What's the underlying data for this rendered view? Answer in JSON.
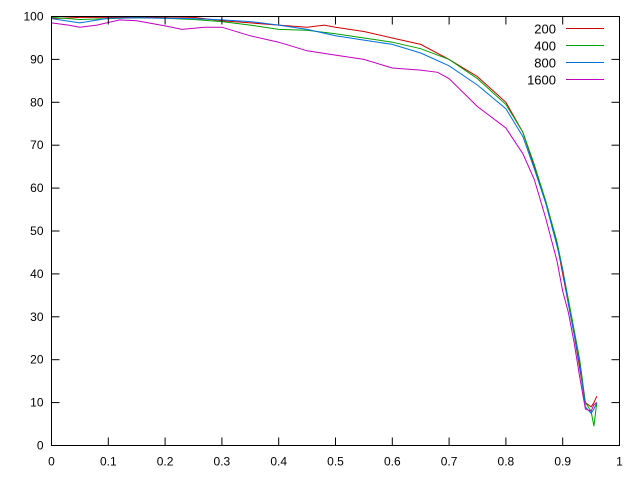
{
  "chart_data": {
    "type": "line",
    "title": "",
    "xlabel": "",
    "ylabel": "",
    "xlim": [
      0,
      1
    ],
    "ylim": [
      0,
      100
    ],
    "xticks": [
      "0",
      "0.1",
      "0.2",
      "0.3",
      "0.4",
      "0.5",
      "0.6",
      "0.7",
      "0.8",
      "0.9",
      "1"
    ],
    "yticks": [
      "0",
      "10",
      "20",
      "30",
      "40",
      "50",
      "60",
      "70",
      "80",
      "90",
      "100"
    ],
    "grid": false,
    "legend_position": "top-right",
    "series": [
      {
        "name": "200",
        "color": "#d00000",
        "x": [
          0,
          0.05,
          0.1,
          0.15,
          0.2,
          0.25,
          0.3,
          0.35,
          0.4,
          0.45,
          0.48,
          0.5,
          0.55,
          0.6,
          0.65,
          0.7,
          0.75,
          0.8,
          0.83,
          0.85,
          0.87,
          0.89,
          0.9,
          0.91,
          0.92,
          0.93,
          0.94,
          0.95,
          0.955,
          0.96
        ],
        "y": [
          99.5,
          99.8,
          99.8,
          99.8,
          99.9,
          99.8,
          99,
          98.5,
          98,
          97.5,
          98,
          97.5,
          96.5,
          95,
          93.5,
          90,
          86,
          80,
          73,
          65,
          57,
          47,
          40,
          33,
          26,
          18,
          10,
          9,
          10,
          11.5
        ]
      },
      {
        "name": "400",
        "color": "#00a000",
        "x": [
          0,
          0.05,
          0.1,
          0.15,
          0.2,
          0.25,
          0.3,
          0.35,
          0.4,
          0.45,
          0.5,
          0.55,
          0.6,
          0.65,
          0.7,
          0.75,
          0.8,
          0.83,
          0.85,
          0.87,
          0.89,
          0.9,
          0.91,
          0.92,
          0.93,
          0.94,
          0.95,
          0.955,
          0.96
        ],
        "y": [
          99.8,
          99.3,
          99.5,
          99.7,
          99.6,
          99.3,
          98.8,
          98,
          97,
          96.8,
          96,
          95,
          94,
          92.5,
          90,
          85.5,
          79.5,
          73,
          65.5,
          57,
          47.5,
          41,
          34,
          27,
          20,
          10,
          8,
          4.5,
          10
        ]
      },
      {
        "name": "800",
        "color": "#0070e0",
        "x": [
          0,
          0.05,
          0.1,
          0.15,
          0.2,
          0.25,
          0.3,
          0.35,
          0.4,
          0.45,
          0.5,
          0.55,
          0.6,
          0.65,
          0.7,
          0.75,
          0.8,
          0.83,
          0.85,
          0.87,
          0.89,
          0.9,
          0.91,
          0.92,
          0.93,
          0.94,
          0.95,
          0.955,
          0.96
        ],
        "y": [
          99.5,
          98.5,
          99.6,
          99.7,
          99.6,
          99.5,
          99.2,
          98.8,
          98,
          97,
          95.5,
          94.5,
          93.5,
          91.5,
          88.5,
          84,
          78.5,
          72,
          64.5,
          56.5,
          46.5,
          41,
          33,
          26,
          19,
          9,
          7.5,
          8.5,
          10
        ]
      },
      {
        "name": "1600",
        "color": "#c000c0",
        "x": [
          0,
          0.03,
          0.05,
          0.08,
          0.12,
          0.15,
          0.2,
          0.23,
          0.27,
          0.3,
          0.35,
          0.4,
          0.45,
          0.5,
          0.55,
          0.6,
          0.65,
          0.68,
          0.7,
          0.75,
          0.8,
          0.83,
          0.85,
          0.87,
          0.89,
          0.9,
          0.91,
          0.92,
          0.93,
          0.94,
          0.95,
          0.955,
          0.96
        ],
        "y": [
          98.5,
          98,
          97.5,
          98,
          99.2,
          99,
          97.8,
          97,
          97.5,
          97.5,
          95.5,
          94,
          92,
          91,
          90,
          88,
          87.5,
          87,
          85.5,
          79,
          74,
          68,
          62,
          53,
          43,
          36,
          31,
          24,
          16,
          8.5,
          8,
          9.5,
          10
        ]
      }
    ]
  }
}
